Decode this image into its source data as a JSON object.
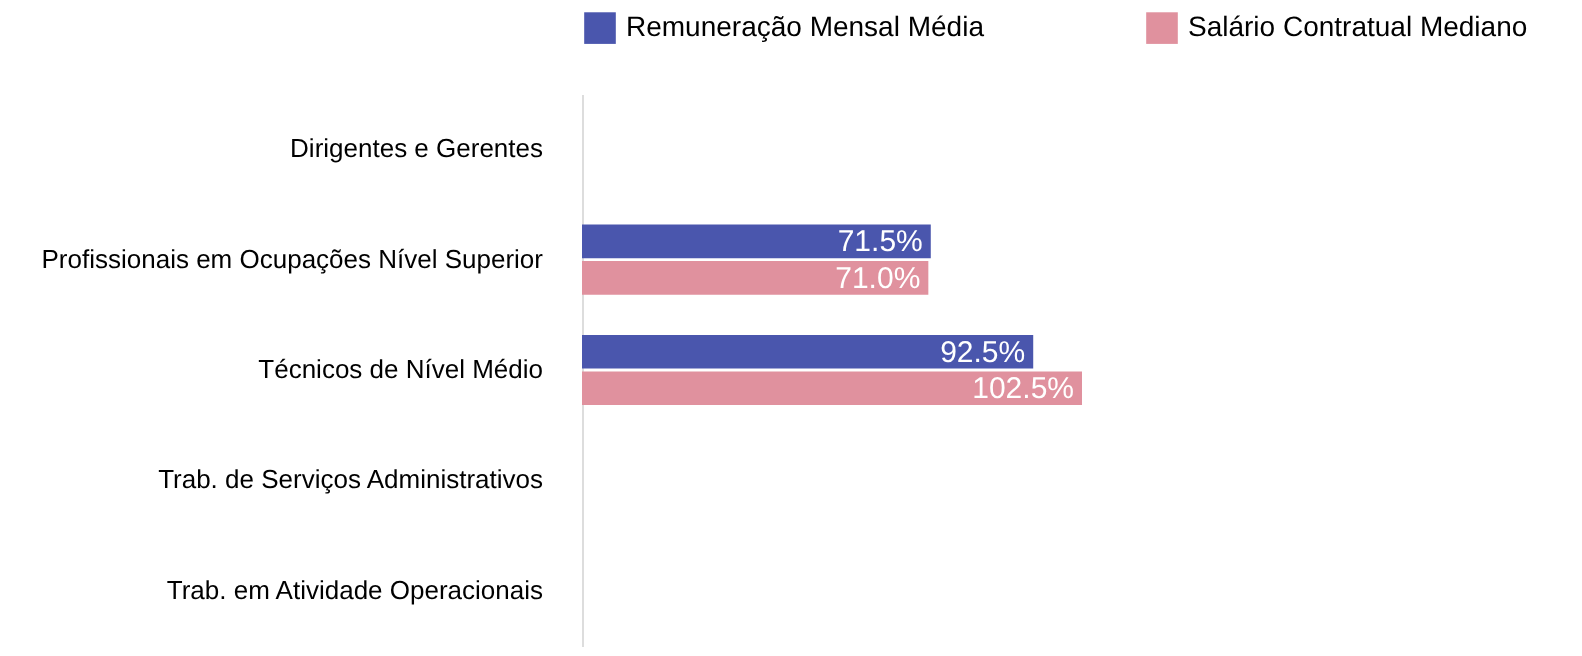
{
  "chart_data": {
    "type": "bar",
    "orientation": "horizontal",
    "categories": [
      "Dirigentes e Gerentes",
      "Profissionais em Ocupações Nível Superior",
      "Técnicos de Nível Médio",
      "Trab. de Serviços Administrativos",
      "Trab. em Atividade Operacionais"
    ],
    "series": [
      {
        "name": "Remuneração Mensal Média",
        "color": "#4a56ad",
        "values": [
          null,
          71.5,
          92.5,
          null,
          null
        ],
        "value_labels": [
          null,
          "71.5%",
          "92.5%",
          null,
          null
        ]
      },
      {
        "name": "Salário Contratual Mediano",
        "color": "#e0919e",
        "values": [
          null,
          71.0,
          102.5,
          null,
          null
        ],
        "value_labels": [
          null,
          "71.0%",
          "102.5%",
          null,
          null
        ]
      }
    ],
    "tick_labels": "y",
    "grid": false,
    "legend": "top"
  }
}
